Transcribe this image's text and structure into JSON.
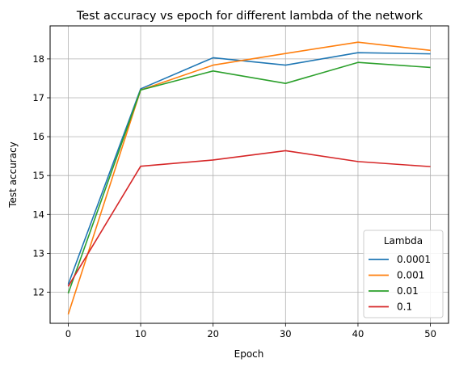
{
  "chart_data": {
    "type": "line",
    "title": "Test accuracy vs epoch for different lambda of the network",
    "xlabel": "Epoch",
    "ylabel": "Test accuracy",
    "xlim": [
      -2.5,
      52.5
    ],
    "ylim": [
      11.2,
      18.85
    ],
    "xticks": [
      0,
      10,
      20,
      30,
      40,
      50
    ],
    "yticks": [
      12,
      13,
      14,
      15,
      16,
      17,
      18
    ],
    "grid": true,
    "legend": {
      "title": "Lambda",
      "location": "lower-right"
    },
    "x": [
      0,
      10,
      20,
      30,
      40,
      50
    ],
    "series": [
      {
        "name": "0.0001",
        "color": "#1f77b4",
        "values": [
          12.2,
          17.23,
          18.03,
          17.84,
          18.16,
          18.13
        ]
      },
      {
        "name": "0.001",
        "color": "#ff7f0e",
        "values": [
          11.43,
          17.2,
          17.84,
          18.14,
          18.43,
          18.22
        ]
      },
      {
        "name": "0.01",
        "color": "#2ca02c",
        "values": [
          11.97,
          17.2,
          17.69,
          17.37,
          17.91,
          17.78
        ]
      },
      {
        "name": "0.1",
        "color": "#d62728",
        "values": [
          12.15,
          15.24,
          15.4,
          15.64,
          15.36,
          15.23
        ]
      }
    ]
  }
}
